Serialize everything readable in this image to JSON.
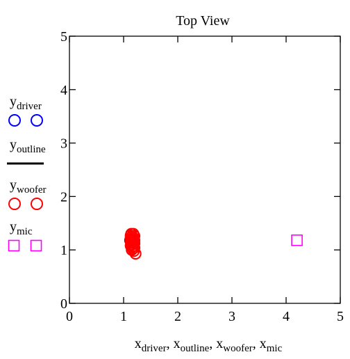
{
  "chart_data": {
    "type": "scatter",
    "title": "Top View",
    "xlabel": {
      "parts": [
        {
          "base": "x",
          "sub": "driver",
          "sep": ", "
        },
        {
          "base": "x",
          "sub": "outline",
          "sep": ", "
        },
        {
          "base": "x",
          "sub": "woofer",
          "sep": ", "
        },
        {
          "base": "x",
          "sub": "mic",
          "sep": ""
        }
      ]
    },
    "xlim": [
      0,
      5
    ],
    "ylim": [
      0,
      5
    ],
    "xticks": [
      0,
      1,
      2,
      3,
      4,
      5
    ],
    "yticks": [
      0,
      1,
      2,
      3,
      4,
      5
    ],
    "grid": false,
    "legend_position": "left",
    "series": [
      {
        "name_base": "y",
        "name_sub": "driver",
        "marker": "circle",
        "color": "#0000ff",
        "points": [
          [
            1.12,
            1.18
          ],
          [
            1.15,
            1.2
          ],
          [
            1.18,
            1.16
          ],
          [
            1.14,
            1.14
          ]
        ]
      },
      {
        "name_base": "y",
        "name_sub": "outline",
        "marker": "line",
        "color": "#000000",
        "points": []
      },
      {
        "name_base": "y",
        "name_sub": "woofer",
        "marker": "circle",
        "color": "#ff0000",
        "points": [
          [
            1.14,
            1.3
          ],
          [
            1.18,
            1.3
          ],
          [
            1.13,
            1.27
          ],
          [
            1.2,
            1.26
          ],
          [
            1.16,
            1.25
          ],
          [
            1.13,
            1.23
          ],
          [
            1.19,
            1.22
          ],
          [
            1.16,
            1.2
          ],
          [
            1.2,
            1.18
          ],
          [
            1.13,
            1.17
          ],
          [
            1.17,
            1.15
          ],
          [
            1.14,
            1.13
          ],
          [
            1.2,
            1.12
          ],
          [
            1.16,
            1.1
          ],
          [
            1.13,
            1.08
          ],
          [
            1.18,
            1.07
          ],
          [
            1.15,
            1.05
          ],
          [
            1.2,
            1.04
          ],
          [
            1.17,
            1.02
          ],
          [
            1.15,
            1.0
          ],
          [
            1.19,
            0.98
          ],
          [
            1.22,
            0.93
          ]
        ]
      },
      {
        "name_base": "y",
        "name_sub": "mic",
        "marker": "square",
        "color": "#ff00ff",
        "points": [
          [
            4.2,
            1.18
          ]
        ]
      }
    ]
  }
}
